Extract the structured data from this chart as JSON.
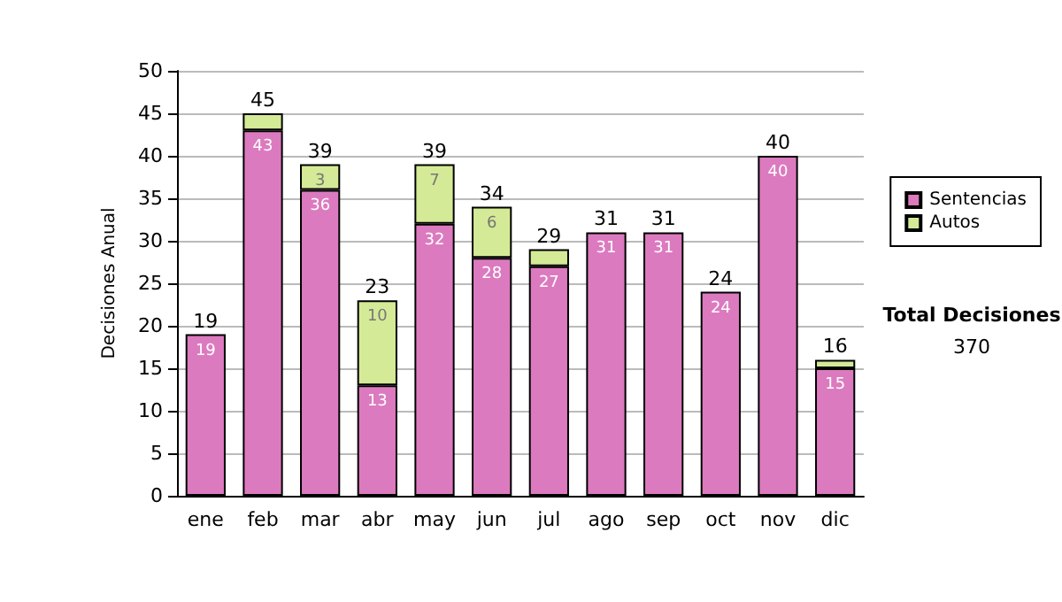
{
  "chart_data": {
    "type": "bar",
    "ylabel": "Decisiones Anual",
    "categories": [
      "ene",
      "feb",
      "mar",
      "abr",
      "may",
      "jun",
      "jul",
      "ago",
      "sep",
      "oct",
      "nov",
      "dic"
    ],
    "stacked": true,
    "series": [
      {
        "name": "Sentencias",
        "color": "#dc7abf",
        "values": [
          19,
          43,
          36,
          13,
          32,
          28,
          27,
          31,
          31,
          24,
          40,
          15
        ],
        "value_labels": [
          "19",
          "43",
          "36",
          "13",
          "32",
          "28",
          "27",
          "31",
          "31",
          "24",
          "40",
          "15"
        ]
      },
      {
        "name": "Autos",
        "color": "#d5ea96",
        "values": [
          null,
          2,
          3,
          10,
          7,
          6,
          2,
          null,
          null,
          null,
          null,
          1
        ],
        "value_labels": [
          null,
          null,
          "3",
          "10",
          "7",
          "6",
          null,
          null,
          null,
          null,
          null,
          null
        ]
      }
    ],
    "totals": [
      "19",
      "45",
      "39",
      "23",
      "39",
      "34",
      "29",
      "31",
      "31",
      "24",
      "40",
      "16"
    ],
    "ylim": [
      0,
      50
    ],
    "yticks": [
      0,
      5,
      10,
      15,
      20,
      25,
      30,
      35,
      40,
      45,
      50
    ],
    "grid": "y",
    "legend": "right",
    "annotations": [
      "Total Decisiones",
      "370"
    ]
  }
}
